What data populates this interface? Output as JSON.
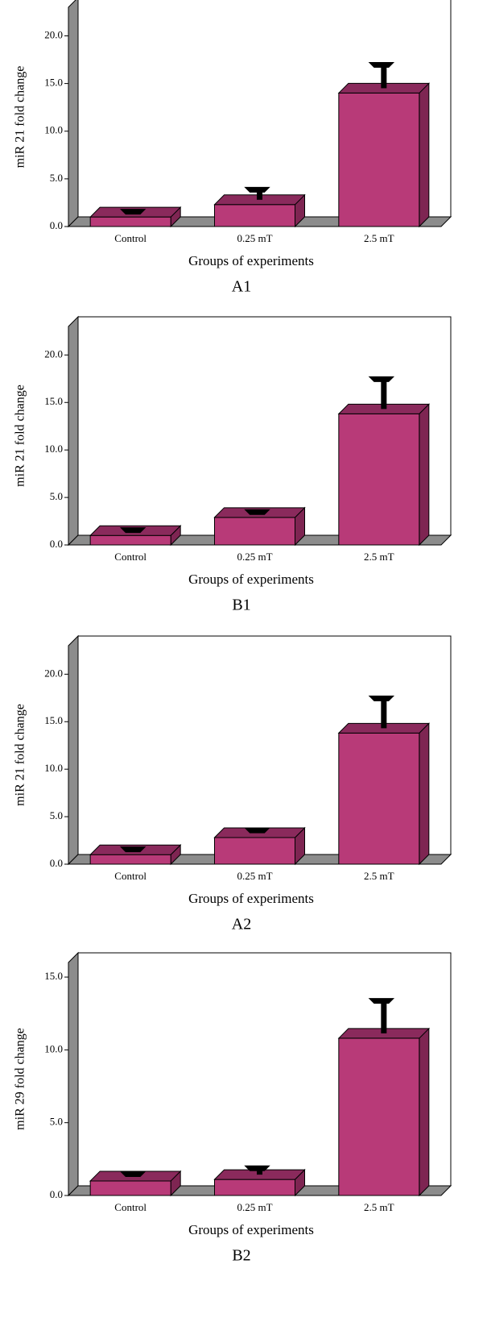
{
  "chart_data": [
    {
      "type": "bar3d",
      "caption": "A1",
      "ylabel": "miR 21 fold change",
      "xlabel": "Groups of experiments",
      "categories": [
        "Control",
        "0.25 mT",
        "2.5 mT"
      ],
      "values": [
        1.0,
        2.3,
        14.0
      ],
      "errors": [
        0.3,
        1.3,
        2.7
      ],
      "color": "#b83a78",
      "ylim": [
        0,
        23
      ],
      "yticks": [
        {
          "value": 0,
          "label": "0.0"
        },
        {
          "value": 5,
          "label": "5.0"
        },
        {
          "value": 10,
          "label": "10.0"
        },
        {
          "value": 15,
          "label": "15.0"
        },
        {
          "value": 20,
          "label": "20.0"
        }
      ]
    },
    {
      "type": "bar3d",
      "caption": "B1",
      "ylabel": "miR 21 fold change",
      "xlabel": "Groups of experiments",
      "categories": [
        "Control",
        "0.25 mT",
        "2.5 mT"
      ],
      "values": [
        1.0,
        2.9,
        13.8
      ],
      "errors": [
        0.3,
        0.3,
        3.4
      ],
      "color": "#b83a78",
      "ylim": [
        0,
        23
      ],
      "yticks": [
        {
          "value": 0,
          "label": "0.0"
        },
        {
          "value": 5,
          "label": "5.0"
        },
        {
          "value": 10,
          "label": "10.0"
        },
        {
          "value": 15,
          "label": "15.0"
        },
        {
          "value": 20,
          "label": "20.0"
        }
      ]
    },
    {
      "type": "bar3d",
      "caption": "A2",
      "ylabel": "miR 21 fold change",
      "xlabel": "Groups of experiments",
      "categories": [
        "Control",
        "0.25 mT",
        "2.5 mT"
      ],
      "values": [
        1.0,
        2.8,
        13.8
      ],
      "errors": [
        0.3,
        0.5,
        3.4
      ],
      "color": "#b83a78",
      "ylim": [
        0,
        23
      ],
      "yticks": [
        {
          "value": 0,
          "label": "0.0"
        },
        {
          "value": 5,
          "label": "5.0"
        },
        {
          "value": 10,
          "label": "10.0"
        },
        {
          "value": 15,
          "label": "15.0"
        },
        {
          "value": 20,
          "label": "20.0"
        }
      ]
    },
    {
      "type": "bar3d",
      "caption": "B2",
      "ylabel": "miR 29 fold change",
      "xlabel": "Groups of experiments",
      "categories": [
        "Control",
        "0.25 mT",
        "2.5 mT"
      ],
      "values": [
        1.0,
        1.1,
        10.8
      ],
      "errors": [
        0.3,
        0.6,
        2.4
      ],
      "color": "#b83a78",
      "ylim": [
        0,
        16
      ],
      "yticks": [
        {
          "value": 0,
          "label": "0.0"
        },
        {
          "value": 5,
          "label": "5.0"
        },
        {
          "value": 10,
          "label": "10.0"
        },
        {
          "value": 15,
          "label": "15.0"
        }
      ]
    }
  ]
}
